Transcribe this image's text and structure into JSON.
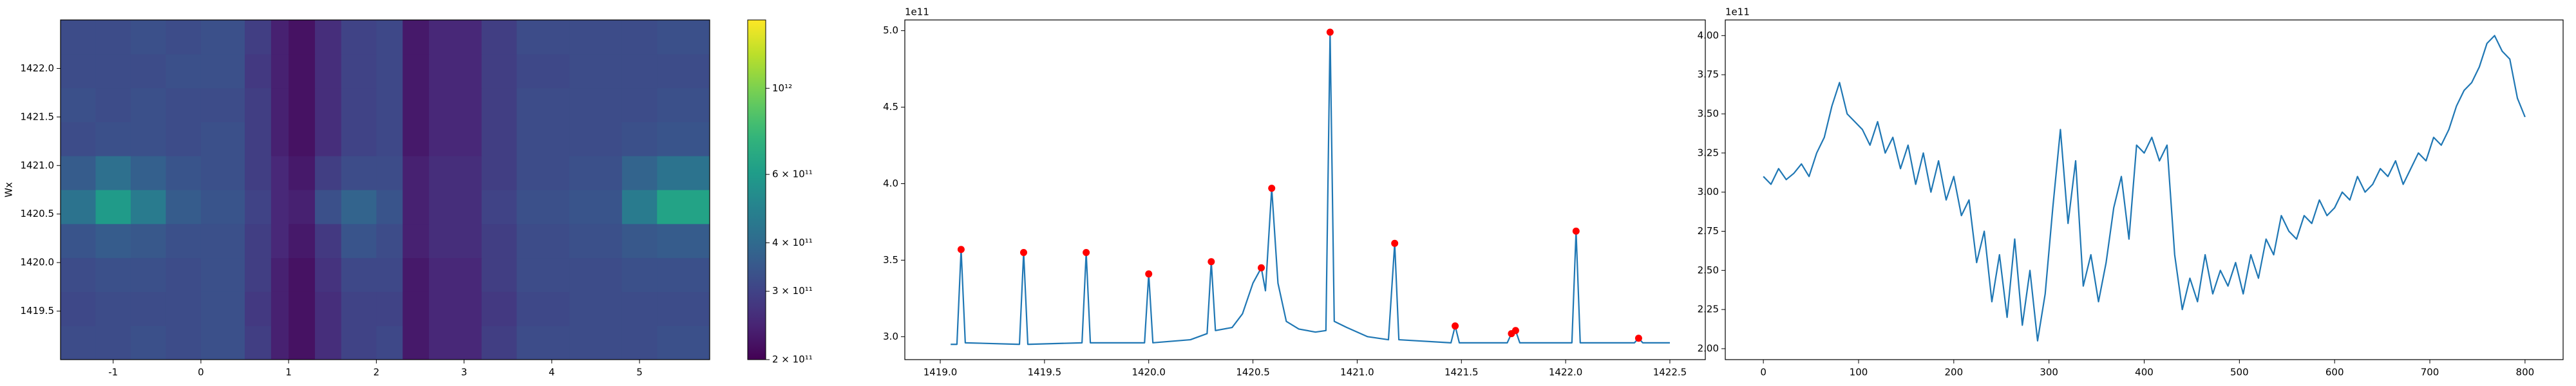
{
  "chart_data": [
    {
      "type": "heatmap",
      "ylabel": "Wx",
      "x_edges": [
        -1.6,
        -1.2,
        -0.8,
        -0.4,
        0,
        0.5,
        0.8,
        1.0,
        1.3,
        1.6,
        2.0,
        2.3,
        2.6,
        3.2,
        3.6,
        4.2,
        4.8,
        5.2,
        5.8
      ],
      "y_edges": [
        1419.0,
        1419.35,
        1419.7,
        1420.05,
        1420.4,
        1420.75,
        1421.1,
        1421.45,
        1421.8,
        1422.15,
        1422.5
      ],
      "values": [
        [
          320000000000.0,
          320000000000.0,
          330000000000.0,
          320000000000.0,
          330000000000.0,
          290000000000.0,
          240000000000.0,
          220000000000.0,
          260000000000.0,
          300000000000.0,
          310000000000.0,
          230000000000.0,
          250000000000.0,
          290000000000.0,
          320000000000.0,
          320000000000.0,
          320000000000.0,
          330000000000.0
        ],
        [
          310000000000.0,
          320000000000.0,
          320000000000.0,
          320000000000.0,
          330000000000.0,
          280000000000.0,
          240000000000.0,
          220000000000.0,
          260000000000.0,
          300000000000.0,
          300000000000.0,
          230000000000.0,
          250000000000.0,
          280000000000.0,
          310000000000.0,
          320000000000.0,
          320000000000.0,
          320000000000.0
        ],
        [
          320000000000.0,
          330000000000.0,
          330000000000.0,
          320000000000.0,
          330000000000.0,
          290000000000.0,
          240000000000.0,
          220000000000.0,
          270000000000.0,
          310000000000.0,
          310000000000.0,
          230000000000.0,
          250000000000.0,
          290000000000.0,
          320000000000.0,
          320000000000.0,
          330000000000.0,
          330000000000.0
        ],
        [
          340000000000.0,
          360000000000.0,
          350000000000.0,
          330000000000.0,
          330000000000.0,
          290000000000.0,
          250000000000.0,
          230000000000.0,
          280000000000.0,
          340000000000.0,
          320000000000.0,
          240000000000.0,
          260000000000.0,
          290000000000.0,
          320000000000.0,
          330000000000.0,
          350000000000.0,
          360000000000.0
        ],
        [
          430000000000.0,
          600000000000.0,
          460000000000.0,
          360000000000.0,
          340000000000.0,
          300000000000.0,
          250000000000.0,
          240000000000.0,
          330000000000.0,
          380000000000.0,
          340000000000.0,
          240000000000.0,
          260000000000.0,
          300000000000.0,
          330000000000.0,
          340000000000.0,
          460000000000.0,
          640000000000.0
        ],
        [
          360000000000.0,
          420000000000.0,
          370000000000.0,
          340000000000.0,
          330000000000.0,
          290000000000.0,
          250000000000.0,
          230000000000.0,
          290000000000.0,
          320000000000.0,
          320000000000.0,
          240000000000.0,
          260000000000.0,
          290000000000.0,
          320000000000.0,
          330000000000.0,
          380000000000.0,
          430000000000.0
        ],
        [
          320000000000.0,
          330000000000.0,
          330000000000.0,
          320000000000.0,
          330000000000.0,
          290000000000.0,
          240000000000.0,
          220000000000.0,
          260000000000.0,
          300000000000.0,
          310000000000.0,
          230000000000.0,
          250000000000.0,
          290000000000.0,
          320000000000.0,
          320000000000.0,
          330000000000.0,
          340000000000.0
        ],
        [
          330000000000.0,
          320000000000.0,
          330000000000.0,
          320000000000.0,
          320000000000.0,
          290000000000.0,
          240000000000.0,
          220000000000.0,
          260000000000.0,
          300000000000.0,
          310000000000.0,
          230000000000.0,
          250000000000.0,
          290000000000.0,
          320000000000.0,
          320000000000.0,
          320000000000.0,
          330000000000.0
        ],
        [
          320000000000.0,
          320000000000.0,
          320000000000.0,
          330000000000.0,
          330000000000.0,
          280000000000.0,
          240000000000.0,
          220000000000.0,
          260000000000.0,
          300000000000.0,
          310000000000.0,
          230000000000.0,
          250000000000.0,
          290000000000.0,
          310000000000.0,
          320000000000.0,
          320000000000.0,
          320000000000.0
        ],
        [
          320000000000.0,
          320000000000.0,
          330000000000.0,
          320000000000.0,
          330000000000.0,
          290000000000.0,
          240000000000.0,
          220000000000.0,
          260000000000.0,
          300000000000.0,
          310000000000.0,
          230000000000.0,
          250000000000.0,
          290000000000.0,
          320000000000.0,
          320000000000.0,
          320000000000.0,
          330000000000.0
        ]
      ],
      "xlim": [
        -1.6,
        5.8
      ],
      "ylim": [
        1419.0,
        1422.5
      ],
      "xticks": [
        -1,
        0,
        1,
        2,
        3,
        4,
        5
      ],
      "yticks": [
        1419.5,
        {
          "value": 1420,
          "label": "1420.0"
        },
        1420.5,
        {
          "value": 1421,
          "label": "1421.0"
        },
        1421.5,
        {
          "value": 1422,
          "label": "1422.0"
        }
      ],
      "colormap": "viridis",
      "cscale": "log",
      "clim": [
        200000000000.0,
        1500000000000.0
      ],
      "cticks": [
        {
          "value": 200000000000.0,
          "label": "2 × 10¹¹"
        },
        {
          "value": 300000000000.0,
          "label": "3 × 10¹¹"
        },
        {
          "value": 400000000000.0,
          "label": "4 × 10¹¹"
        },
        {
          "value": 600000000000.0,
          "label": "6 × 10¹¹"
        },
        {
          "value": 1000000000000.0,
          "label": "10¹²"
        }
      ]
    },
    {
      "type": "line",
      "offset_label": "1e11",
      "series": [
        {
          "style": "line",
          "color": "#1f77b4",
          "x": [
            1419.05,
            1419.08,
            1419.1,
            1419.12,
            1419.38,
            1419.4,
            1419.42,
            1419.68,
            1419.7,
            1419.72,
            1419.98,
            1420.0,
            1420.02,
            1420.2,
            1420.28,
            1420.3,
            1420.32,
            1420.4,
            1420.45,
            1420.5,
            1420.54,
            1420.56,
            1420.59,
            1420.62,
            1420.66,
            1420.72,
            1420.8,
            1420.85,
            1420.87,
            1420.89,
            1420.95,
            1421.05,
            1421.15,
            1421.18,
            1421.2,
            1421.45,
            1421.47,
            1421.49,
            1421.72,
            1421.74,
            1421.76,
            1421.78,
            1422.03,
            1422.05,
            1422.07,
            1422.33,
            1422.35,
            1422.37,
            1422.5
          ],
          "values": [
            2.95,
            2.95,
            3.57,
            2.96,
            2.95,
            3.55,
            2.95,
            2.96,
            3.55,
            2.96,
            2.96,
            3.41,
            2.96,
            2.98,
            3.02,
            3.49,
            3.04,
            3.06,
            3.15,
            3.35,
            3.45,
            3.3,
            3.97,
            3.35,
            3.1,
            3.05,
            3.03,
            3.04,
            4.99,
            3.1,
            3.06,
            3.0,
            2.98,
            3.61,
            2.98,
            2.96,
            3.07,
            2.96,
            2.96,
            3.02,
            3.04,
            2.96,
            2.96,
            3.69,
            2.96,
            2.96,
            2.99,
            2.96,
            2.96
          ]
        },
        {
          "style": "markers",
          "color": "#ff0000",
          "x": [
            1419.1,
            1419.4,
            1419.7,
            1420.0,
            1420.3,
            1420.54,
            1420.59,
            1420.87,
            1421.18,
            1421.47,
            1421.74,
            1421.76,
            1422.05,
            1422.35
          ],
          "values": [
            3.57,
            3.55,
            3.55,
            3.41,
            3.49,
            3.45,
            3.97,
            4.99,
            3.61,
            3.07,
            3.02,
            3.04,
            3.69,
            2.99
          ]
        }
      ],
      "xlim": [
        1418.83,
        1422.67
      ],
      "ylim": [
        2.85,
        5.07
      ],
      "xticks": [
        {
          "value": 1419,
          "label": "1419.0"
        },
        1419.5,
        {
          "value": 1420,
          "label": "1420.0"
        },
        1420.5,
        {
          "value": 1421,
          "label": "1421.0"
        },
        1421.5,
        {
          "value": 1422,
          "label": "1422.0"
        },
        1422.5
      ],
      "yticks": [
        {
          "value": 3,
          "label": "3.0"
        },
        3.5,
        {
          "value": 4,
          "label": "4.0"
        },
        4.5,
        {
          "value": 5,
          "label": "5.0"
        }
      ]
    },
    {
      "type": "line",
      "offset_label": "1e11",
      "series": [
        {
          "style": "line",
          "color": "#1f77b4",
          "x": [
            0,
            8,
            16,
            24,
            32,
            40,
            48,
            56,
            64,
            72,
            80,
            88,
            96,
            104,
            112,
            120,
            128,
            136,
            144,
            152,
            160,
            168,
            176,
            184,
            192,
            200,
            208,
            216,
            224,
            232,
            240,
            248,
            256,
            264,
            272,
            280,
            288,
            296,
            304,
            312,
            320,
            328,
            336,
            344,
            352,
            360,
            368,
            376,
            384,
            392,
            400,
            408,
            416,
            424,
            432,
            440,
            448,
            456,
            464,
            472,
            480,
            488,
            496,
            504,
            512,
            520,
            528,
            536,
            544,
            552,
            560,
            568,
            576,
            584,
            592,
            600,
            608,
            616,
            624,
            632,
            640,
            648,
            656,
            664,
            672,
            680,
            688,
            696,
            704,
            712,
            720,
            728,
            736,
            744,
            752,
            760,
            768,
            776,
            784,
            792,
            800
          ],
          "values": [
            3.1,
            3.05,
            3.15,
            3.08,
            3.12,
            3.18,
            3.1,
            3.25,
            3.35,
            3.55,
            3.7,
            3.5,
            3.45,
            3.4,
            3.3,
            3.45,
            3.25,
            3.35,
            3.15,
            3.3,
            3.05,
            3.25,
            3.0,
            3.2,
            2.95,
            3.1,
            2.85,
            2.95,
            2.55,
            2.75,
            2.3,
            2.6,
            2.2,
            2.7,
            2.15,
            2.5,
            2.05,
            2.35,
            2.9,
            3.4,
            2.8,
            3.2,
            2.4,
            2.6,
            2.3,
            2.55,
            2.9,
            3.1,
            2.7,
            3.3,
            3.25,
            3.35,
            3.2,
            3.3,
            2.6,
            2.25,
            2.45,
            2.3,
            2.6,
            2.35,
            2.5,
            2.4,
            2.55,
            2.35,
            2.6,
            2.45,
            2.7,
            2.6,
            2.85,
            2.75,
            2.7,
            2.85,
            2.8,
            2.95,
            2.85,
            2.9,
            3.0,
            2.95,
            3.1,
            3.0,
            3.05,
            3.15,
            3.1,
            3.2,
            3.05,
            3.15,
            3.25,
            3.2,
            3.35,
            3.3,
            3.4,
            3.55,
            3.65,
            3.7,
            3.8,
            3.95,
            4.0,
            3.9,
            3.85,
            3.6,
            3.48
          ]
        }
      ],
      "xlim": [
        -40,
        840
      ],
      "ylim": [
        1.93,
        4.1
      ],
      "xticks": [
        0,
        100,
        200,
        300,
        400,
        500,
        600,
        700,
        800
      ],
      "yticks": [
        {
          "value": 2,
          "label": "2.00"
        },
        2.25,
        {
          "value": 2.5,
          "label": "2.50"
        },
        2.75,
        {
          "value": 3,
          "label": "3.00"
        },
        3.25,
        {
          "value": 3.5,
          "label": "3.50"
        },
        3.75,
        {
          "value": 4,
          "label": "4.00"
        }
      ]
    }
  ]
}
